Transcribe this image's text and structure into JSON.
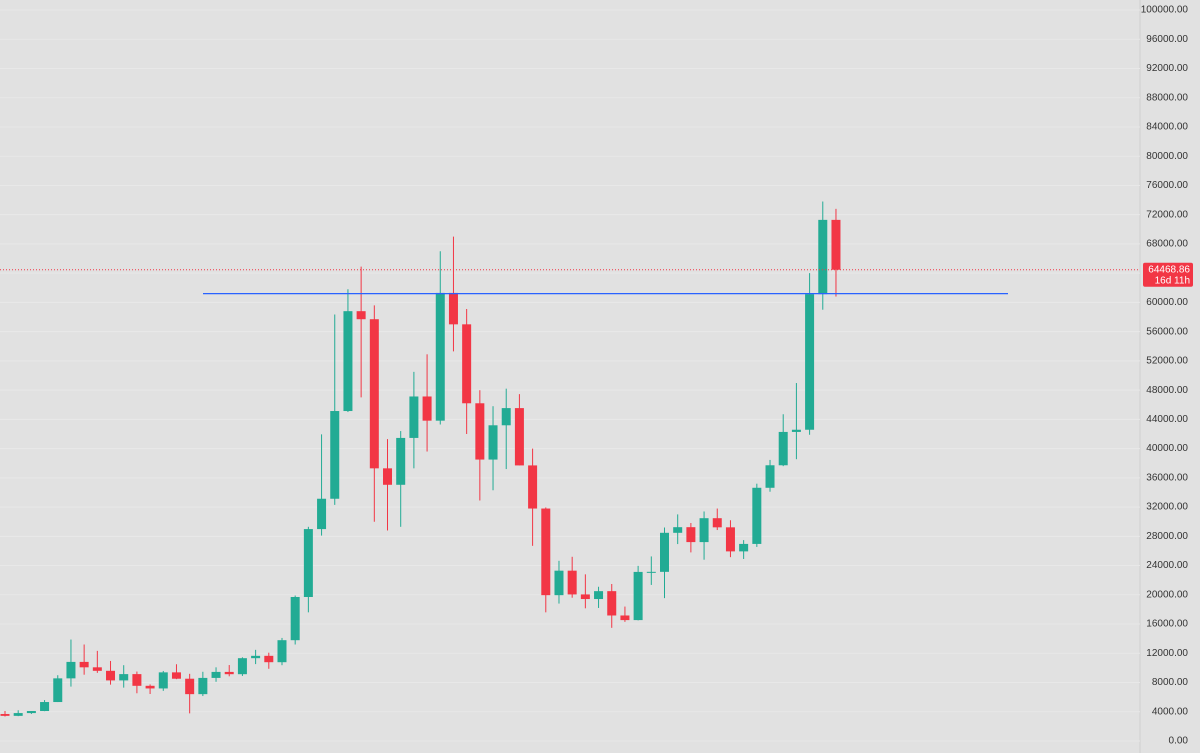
{
  "chart_data": {
    "type": "candlestick",
    "open": [
      3690,
      3440,
      3820,
      4100,
      5330,
      8570,
      10820,
      10080,
      9600,
      8290,
      9150,
      7550,
      7190,
      9390,
      8520,
      6410,
      8630,
      9450,
      9140,
      11330,
      11650,
      10780,
      13790,
      19700,
      28990,
      33140,
      45140,
      58800,
      57700,
      37300,
      35050,
      41460,
      47130,
      43820,
      61300,
      57000,
      46200,
      38500,
      43190,
      45540,
      37700,
      31800,
      19950,
      23300,
      20050,
      19420,
      20500,
      17170,
      16540,
      23130,
      23140,
      28480,
      29250,
      27210,
      30480,
      29230,
      25940,
      26960,
      34640,
      37720,
      42280,
      42580,
      61130,
      71290
    ],
    "high": [
      4110,
      4200,
      4100,
      5600,
      9000,
      13880,
      13200,
      12330,
      10950,
      10370,
      9500,
      7740,
      9580,
      10500,
      9190,
      9470,
      10080,
      10390,
      11450,
      12470,
      12080,
      14100,
      19900,
      29300,
      41950,
      58350,
      61800,
      64900,
      59600,
      41300,
      42400,
      50500,
      52900,
      67000,
      69000,
      59100,
      47990,
      45800,
      48200,
      47450,
      40000,
      31950,
      24650,
      25200,
      22800,
      21100,
      21480,
      18390,
      23960,
      25250,
      29200,
      31000,
      29820,
      31400,
      31800,
      30200,
      27480,
      35200,
      38450,
      44700,
      48970,
      64000,
      73800,
      72800
    ],
    "low": [
      3350,
      3400,
      3700,
      4080,
      5330,
      7440,
      9070,
      9320,
      7710,
      7300,
      6530,
      6430,
      6860,
      8460,
      3780,
      6150,
      8100,
      8850,
      8900,
      10520,
      9880,
      10370,
      13200,
      17600,
      28100,
      32300,
      45000,
      47000,
      30000,
      28800,
      29300,
      37300,
      39600,
      43300,
      53300,
      42000,
      32900,
      34300,
      37200,
      37700,
      26700,
      17600,
      18800,
      19600,
      18150,
      18200,
      15480,
      16300,
      16500,
      21350,
      19550,
      26940,
      25800,
      24800,
      28860,
      25150,
      24900,
      26550,
      34100,
      37600,
      38550,
      41900,
      59000,
      60800
    ],
    "close": [
      3440,
      3820,
      4100,
      5330,
      8570,
      10820,
      10080,
      9600,
      8290,
      9150,
      7550,
      7190,
      9390,
      8520,
      6410,
      8630,
      9450,
      9140,
      11330,
      11650,
      10780,
      13790,
      19700,
      28990,
      33140,
      45140,
      58800,
      57700,
      37300,
      35050,
      41460,
      47130,
      43820,
      61300,
      57000,
      46200,
      38500,
      43190,
      45540,
      37700,
      31800,
      19950,
      23300,
      20050,
      19420,
      20500,
      17170,
      16540,
      23130,
      23140,
      28480,
      29250,
      27210,
      30480,
      29230,
      25940,
      26960,
      34640,
      37720,
      42280,
      42580,
      61130,
      71290,
      64468.86
    ],
    "up_color": "#22ab94",
    "down_color": "#f23645",
    "ylim": [
      0,
      100000
    ],
    "yticks": [
      {
        "value": 0,
        "label": "0.00"
      },
      {
        "value": 4000,
        "label": "4000.00"
      },
      {
        "value": 8000,
        "label": "8000.00"
      },
      {
        "value": 12000,
        "label": "12000.00"
      },
      {
        "value": 16000,
        "label": "16000.00"
      },
      {
        "value": 20000,
        "label": "20000.00"
      },
      {
        "value": 24000,
        "label": "24000.00"
      },
      {
        "value": 28000,
        "label": "28000.00"
      },
      {
        "value": 32000,
        "label": "32000.00"
      },
      {
        "value": 36000,
        "label": "36000.00"
      },
      {
        "value": 40000,
        "label": "40000.00"
      },
      {
        "value": 44000,
        "label": "44000.00"
      },
      {
        "value": 48000,
        "label": "48000.00"
      },
      {
        "value": 52000,
        "label": "52000.00"
      },
      {
        "value": 56000,
        "label": "56000.00"
      },
      {
        "value": 60000,
        "label": "60000.00"
      },
      {
        "value": 64000,
        "label": "64000.00"
      },
      {
        "value": 68000,
        "label": "68000.00"
      },
      {
        "value": 72000,
        "label": "72000.00"
      },
      {
        "value": 76000,
        "label": "76000.00"
      },
      {
        "value": 80000,
        "label": "80000.00"
      },
      {
        "value": 84000,
        "label": "84000.00"
      },
      {
        "value": 88000,
        "label": "88000.00"
      },
      {
        "value": 92000,
        "label": "92000.00"
      },
      {
        "value": 96000,
        "label": "96000.00"
      },
      {
        "value": 100000,
        "label": "100000.00"
      }
    ],
    "grid": true,
    "hline": {
      "value": 61200,
      "color": "#2962ff"
    },
    "last_price": 64468.86,
    "countdown": "16d 11h"
  }
}
